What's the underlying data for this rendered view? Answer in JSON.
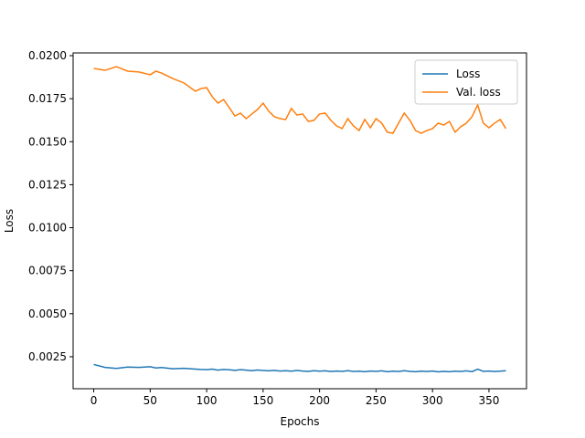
{
  "chart_data": {
    "type": "line",
    "xlabel": "Epochs",
    "ylabel": "Loss",
    "x": [
      0,
      10,
      20,
      30,
      40,
      50,
      55,
      60,
      70,
      80,
      90,
      95,
      100,
      105,
      110,
      115,
      120,
      125,
      130,
      135,
      140,
      145,
      150,
      155,
      160,
      165,
      170,
      175,
      180,
      185,
      190,
      195,
      200,
      205,
      210,
      215,
      220,
      225,
      230,
      235,
      240,
      245,
      250,
      255,
      260,
      265,
      270,
      275,
      280,
      285,
      290,
      295,
      300,
      305,
      310,
      315,
      320,
      325,
      330,
      335,
      340,
      345,
      350,
      355,
      360,
      365
    ],
    "series": [
      {
        "name": "Loss",
        "color": "#1f77b4",
        "values": [
          0.00205,
          0.00188,
          0.00182,
          0.0019,
          0.00188,
          0.00192,
          0.00185,
          0.00187,
          0.0018,
          0.00183,
          0.00178,
          0.00176,
          0.00175,
          0.00178,
          0.00172,
          0.00176,
          0.00174,
          0.00171,
          0.00175,
          0.00172,
          0.00169,
          0.00173,
          0.0017,
          0.00168,
          0.00171,
          0.00167,
          0.00169,
          0.00166,
          0.0017,
          0.00167,
          0.00165,
          0.00169,
          0.00166,
          0.00168,
          0.00164,
          0.00167,
          0.00165,
          0.00169,
          0.00164,
          0.00166,
          0.00163,
          0.00167,
          0.00165,
          0.00168,
          0.00163,
          0.00166,
          0.00164,
          0.00169,
          0.00165,
          0.00163,
          0.00166,
          0.00164,
          0.00167,
          0.00162,
          0.00165,
          0.00163,
          0.00166,
          0.00164,
          0.00168,
          0.00163,
          0.00178,
          0.00165,
          0.00167,
          0.00164,
          0.00166,
          0.00169
        ]
      },
      {
        "name": "Val. loss",
        "color": "#ff7f0e",
        "values": [
          0.01926,
          0.01915,
          0.01936,
          0.0191,
          0.01905,
          0.01889,
          0.0191,
          0.01899,
          0.01867,
          0.01841,
          0.01793,
          0.01809,
          0.01814,
          0.01761,
          0.01724,
          0.01745,
          0.01698,
          0.0165,
          0.01666,
          0.01634,
          0.01661,
          0.01687,
          0.01724,
          0.01677,
          0.01645,
          0.01634,
          0.01629,
          0.01693,
          0.01655,
          0.01661,
          0.01618,
          0.01624,
          0.01661,
          0.01666,
          0.01624,
          0.01592,
          0.01576,
          0.01634,
          0.01592,
          0.01565,
          0.01629,
          0.01581,
          0.01634,
          0.01608,
          0.01555,
          0.01549,
          0.01608,
          0.01666,
          0.01624,
          0.01565,
          0.01549,
          0.01565,
          0.01576,
          0.01608,
          0.01597,
          0.01618,
          0.01555,
          0.01587,
          0.01608,
          0.01645,
          0.01714,
          0.01608,
          0.01581,
          0.01608,
          0.01629,
          0.01576
        ]
      }
    ],
    "xlim": [
      -18.25,
      383.25
    ],
    "xticks": [
      0,
      50,
      100,
      150,
      200,
      250,
      300,
      350
    ],
    "ylim": [
      0.00064,
      0.02016
    ],
    "yticks": [
      0.0025,
      {
        "value": 0.005,
        "label": "0.0050"
      },
      0.0075,
      {
        "value": 0.01,
        "label": "0.0100"
      },
      0.0125,
      {
        "value": 0.015,
        "label": "0.0150"
      },
      0.0175,
      {
        "value": 0.02,
        "label": "0.0200"
      }
    ],
    "legend": "upper right"
  }
}
